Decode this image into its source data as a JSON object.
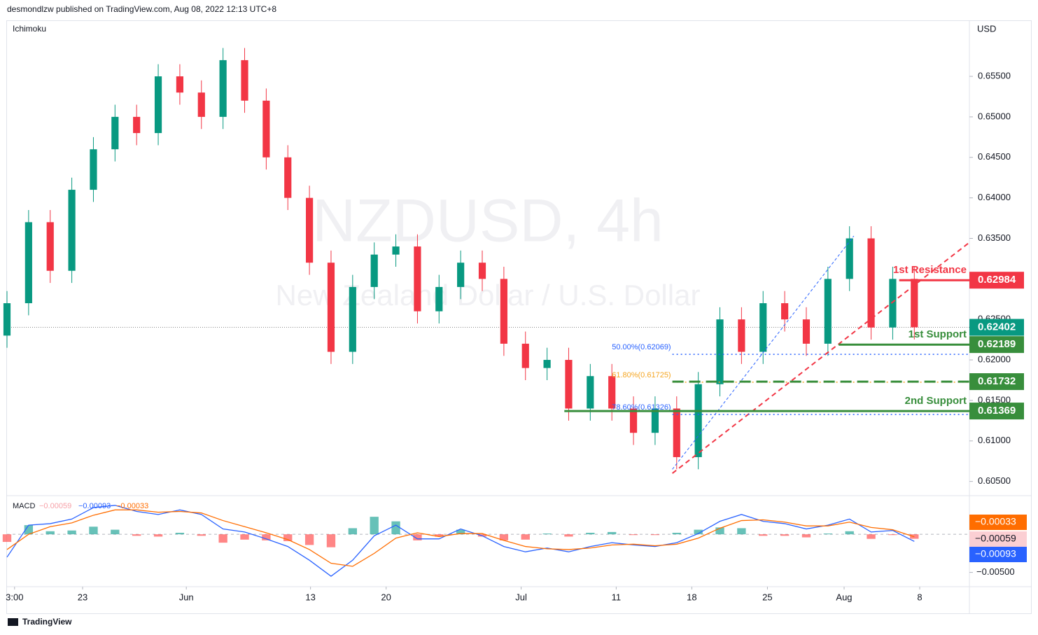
{
  "header": "desmondlzw published on TradingView.com, Aug 08, 2022 12:13 UTC+8",
  "indicator_title": "Ichimoku",
  "currency": "USD",
  "footer": "TradingView",
  "watermark": {
    "symbol": "NZDUSD, 4h",
    "description": "New Zealand Dollar / U.S. Dollar"
  },
  "chart_data": [
    {
      "type": "candlestick",
      "up_color": "#089981",
      "down_color": "#f23645",
      "x": [
        -7,
        -5,
        -3,
        -1,
        1,
        3,
        5,
        7,
        9,
        11,
        13,
        15,
        17,
        19,
        21,
        23,
        25,
        27,
        29,
        31,
        33,
        35,
        37,
        39,
        41,
        43,
        45,
        47,
        49,
        51,
        53,
        55,
        57,
        59,
        61,
        63,
        65,
        67,
        69,
        71,
        73,
        75,
        77
      ],
      "open": [
        0.623,
        0.627,
        0.637,
        0.631,
        0.641,
        0.646,
        0.65,
        0.648,
        0.655,
        0.653,
        0.65,
        0.657,
        0.652,
        0.645,
        0.64,
        0.632,
        0.621,
        0.629,
        0.633,
        0.634,
        0.626,
        0.629,
        0.632,
        0.63,
        0.622,
        0.619,
        0.62,
        0.614,
        0.618,
        0.614,
        0.611,
        0.614,
        0.608,
        0.617,
        0.625,
        0.621,
        0.627,
        0.625,
        0.622,
        0.63,
        0.635,
        0.624,
        0.63
      ],
      "high": [
        0.6285,
        0.6385,
        0.6385,
        0.6425,
        0.6475,
        0.6515,
        0.6515,
        0.6565,
        0.6565,
        0.6545,
        0.6585,
        0.6585,
        0.6535,
        0.6465,
        0.6415,
        0.6335,
        0.6305,
        0.6345,
        0.6355,
        0.6355,
        0.6305,
        0.6335,
        0.6335,
        0.6315,
        0.6235,
        0.6215,
        0.6215,
        0.6195,
        0.6195,
        0.6155,
        0.6155,
        0.6155,
        0.6185,
        0.6265,
        0.6265,
        0.6285,
        0.6285,
        0.6265,
        0.6315,
        0.6365,
        0.6365,
        0.6315,
        0.6315
      ],
      "low": [
        0.6215,
        0.6255,
        0.6295,
        0.6295,
        0.6395,
        0.6445,
        0.6465,
        0.6465,
        0.6515,
        0.6485,
        0.6485,
        0.6505,
        0.6435,
        0.6385,
        0.6305,
        0.6195,
        0.6195,
        0.6275,
        0.6315,
        0.6245,
        0.6245,
        0.6275,
        0.6285,
        0.6205,
        0.6175,
        0.6175,
        0.6125,
        0.6125,
        0.6125,
        0.6095,
        0.6095,
        0.6065,
        0.6065,
        0.6155,
        0.6195,
        0.6195,
        0.6235,
        0.6205,
        0.6205,
        0.6285,
        0.6225,
        0.6225,
        0.62252
      ],
      "close": [
        0.627,
        0.637,
        0.631,
        0.641,
        0.646,
        0.65,
        0.648,
        0.655,
        0.653,
        0.65,
        0.657,
        0.652,
        0.645,
        0.64,
        0.632,
        0.621,
        0.629,
        0.633,
        0.634,
        0.626,
        0.629,
        0.632,
        0.63,
        0.622,
        0.619,
        0.62,
        0.614,
        0.618,
        0.614,
        0.611,
        0.614,
        0.608,
        0.617,
        0.625,
        0.621,
        0.627,
        0.625,
        0.622,
        0.63,
        0.635,
        0.624,
        0.63,
        0.62402
      ],
      "xlim": [
        -7,
        82.1
      ],
      "xticks": [
        {
          "value": -6.3,
          "label": "3:00"
        },
        {
          "value": 0,
          "label": "23"
        },
        {
          "value": 9.6,
          "label": "Jun"
        },
        {
          "value": 21.1,
          "label": "13"
        },
        {
          "value": 28.1,
          "label": "20"
        },
        {
          "value": 40.6,
          "label": "Jul"
        },
        {
          "value": 49.4,
          "label": "11"
        },
        {
          "value": 56.4,
          "label": "18"
        },
        {
          "value": 63.4,
          "label": "25"
        },
        {
          "value": 70.5,
          "label": "Aug"
        },
        {
          "value": 77.5,
          "label": "8"
        }
      ],
      "ylim": [
        0.6035,
        0.6614
      ],
      "yticks": [
        {
          "value": 0.605,
          "label": "0.60500"
        },
        {
          "value": 0.61,
          "label": "0.61000"
        },
        {
          "value": 0.615,
          "label": "0.61500"
        },
        {
          "value": 0.62,
          "label": "0.62000"
        },
        {
          "value": 0.625,
          "label": "0.62500"
        },
        {
          "value": 0.63,
          "label": "0.63000"
        },
        {
          "value": 0.635,
          "label": "0.63500"
        },
        {
          "value": 0.64,
          "label": "0.64000"
        },
        {
          "value": 0.645,
          "label": "0.64500"
        },
        {
          "value": 0.65,
          "label": "0.65000"
        },
        {
          "value": 0.655,
          "label": "0.65500"
        }
      ],
      "levels": [
        {
          "label": "1st Resistance",
          "value": 0.62984,
          "start": 75.6,
          "color": "#f23645"
        },
        {
          "label": "1st Support",
          "value": 0.62189,
          "start": 70,
          "color": "#388e3c"
        },
        {
          "value": 0.61732,
          "start": 54.6,
          "color": "#388e3c",
          "dashed": true
        },
        {
          "label": "2nd Support",
          "value": 0.61369,
          "start": 44.6,
          "color": "#388e3c"
        }
      ],
      "fib": [
        {
          "label": "50.00%(0.62069)",
          "value": 0.62069,
          "start": 54.6,
          "color": "#2962ff"
        },
        {
          "label": "61.80%(0.61725)",
          "value": 0.61725,
          "start": 54.6,
          "color": "#f5a623"
        },
        {
          "label": "78.60%(0.61326)",
          "value": 0.61326,
          "start": 54.6,
          "color": "#2962ff"
        }
      ],
      "trendlines": [
        {
          "x": [
            54.6,
            82.1
          ],
          "y": [
            0.606,
            0.6345
          ],
          "color": "#f23645"
        },
        {
          "x": [
            54.6,
            71.4
          ],
          "y": [
            0.6065,
            0.6353
          ],
          "color": "#2962ff"
        }
      ]
    },
    {
      "type": "macd",
      "title": "MACD",
      "x": [
        -7,
        -5,
        -3,
        -1,
        1,
        3,
        5,
        7,
        9,
        11,
        13,
        15,
        17,
        19,
        21,
        23,
        25,
        27,
        29,
        31,
        33,
        35,
        37,
        39,
        41,
        43,
        45,
        47,
        49,
        51,
        53,
        55,
        57,
        59,
        61,
        63,
        65,
        67,
        69,
        71,
        73,
        75,
        77
      ],
      "histogram": {
        "color": "#26a69a",
        "neg_color": "#ff5252",
        "last_label": "−0.00059",
        "values": [
          -0.001,
          0.0012,
          0.0004,
          0.0005,
          0.001,
          0.0006,
          -0.0002,
          -0.0003,
          0.0002,
          -0.0002,
          -0.0011,
          -0.0007,
          -0.0008,
          -0.0009,
          -0.0014,
          -0.0017,
          0.0008,
          0.0023,
          0.0017,
          -0.0008,
          -0.0003,
          0.0006,
          -0.0003,
          -0.0008,
          -0.0007,
          0.0001,
          -0.0003,
          0.0002,
          0.0003,
          -0.0001,
          -0.0001,
          0.0002,
          0.0006,
          0.0009,
          0.0008,
          -0.0002,
          -0.0002,
          -0.0004,
          0.0001,
          0.0004,
          -0.0006,
          -0.0001,
          -0.00059
        ]
      },
      "macd": {
        "color": "#2962ff",
        "last_label": "−0.00093",
        "values": [
          -0.003,
          0.0012,
          0.0014,
          0.002,
          0.0035,
          0.0038,
          0.003,
          0.0026,
          0.0032,
          0.0026,
          0.0007,
          0.0003,
          -0.0006,
          -0.0016,
          -0.0034,
          -0.0055,
          -0.0034,
          -0.0002,
          0.0012,
          -0.0006,
          -0.0006,
          0.0007,
          -0.0002,
          -0.0016,
          -0.0023,
          -0.0018,
          -0.0023,
          -0.0016,
          -0.0011,
          -0.0014,
          -0.0016,
          -0.0011,
          0.0001,
          0.0017,
          0.0026,
          0.0017,
          0.0014,
          0.0007,
          0.0012,
          0.002,
          0.0003,
          0.0005,
          -0.00093
        ]
      },
      "signal": {
        "color": "#ff6d00",
        "last_label": "−0.00033",
        "values": [
          -0.002,
          0.0,
          0.001,
          0.0015,
          0.0025,
          0.0032,
          0.0032,
          0.0029,
          0.003,
          0.0028,
          0.0018,
          0.001,
          0.0002,
          -0.0007,
          -0.002,
          -0.0038,
          -0.0042,
          -0.0025,
          -0.0005,
          0.0002,
          -0.0003,
          0.0001,
          0.0001,
          -0.0008,
          -0.0016,
          -0.0019,
          -0.002,
          -0.0018,
          -0.0014,
          -0.0013,
          -0.0015,
          -0.0013,
          -0.0005,
          0.0008,
          0.0018,
          0.0019,
          0.0016,
          0.0011,
          0.0011,
          0.0016,
          0.0009,
          0.0006,
          -0.00033
        ]
      },
      "ylim": [
        -0.0066,
        0.0047
      ],
      "yticks": [
        {
          "value": -0.005,
          "label": "−0.00500"
        }
      ]
    }
  ]
}
